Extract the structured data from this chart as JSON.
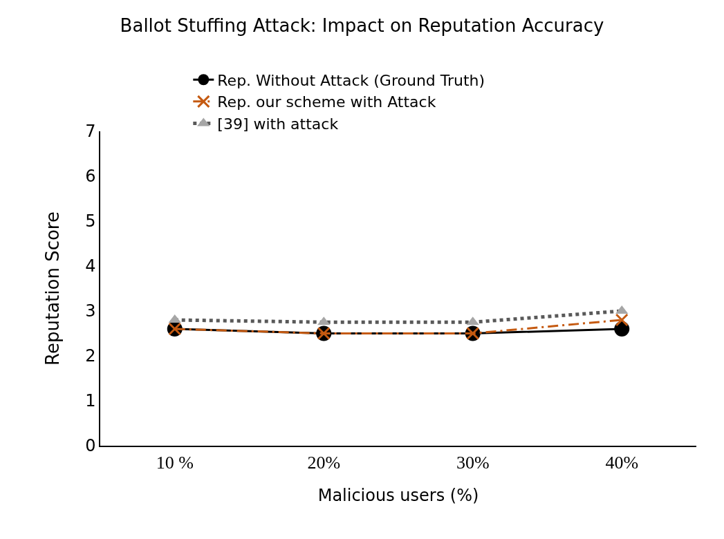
{
  "chart_data": {
    "type": "line",
    "title": "Ballot Stuffing Attack: Impact on Reputation Accuracy",
    "xlabel": "Malicious users (%)",
    "ylabel": "Reputation Score",
    "categories": [
      "10 %",
      "20%",
      "30%",
      "40%"
    ],
    "series": [
      {
        "name": "Rep. Without Attack (Ground Truth)",
        "color": "#000000",
        "values": [
          2.6,
          2.5,
          2.5,
          2.6
        ],
        "marker": "circle",
        "line_style": "solid"
      },
      {
        "name": "Rep. our scheme with Attack",
        "color": "#c55a11",
        "values": [
          2.6,
          2.5,
          2.5,
          2.8
        ],
        "marker": "cross",
        "line_style": "dashed"
      },
      {
        "name": "[39] with attack",
        "color": "#595959",
        "values": [
          2.8,
          2.75,
          2.75,
          3.0
        ],
        "marker": "triangle",
        "line_style": "dotted"
      }
    ],
    "ylim": [
      0,
      7
    ],
    "yticks": [
      0,
      1,
      2,
      3,
      4,
      5,
      6,
      7
    ],
    "grid": false,
    "legend": "top"
  }
}
